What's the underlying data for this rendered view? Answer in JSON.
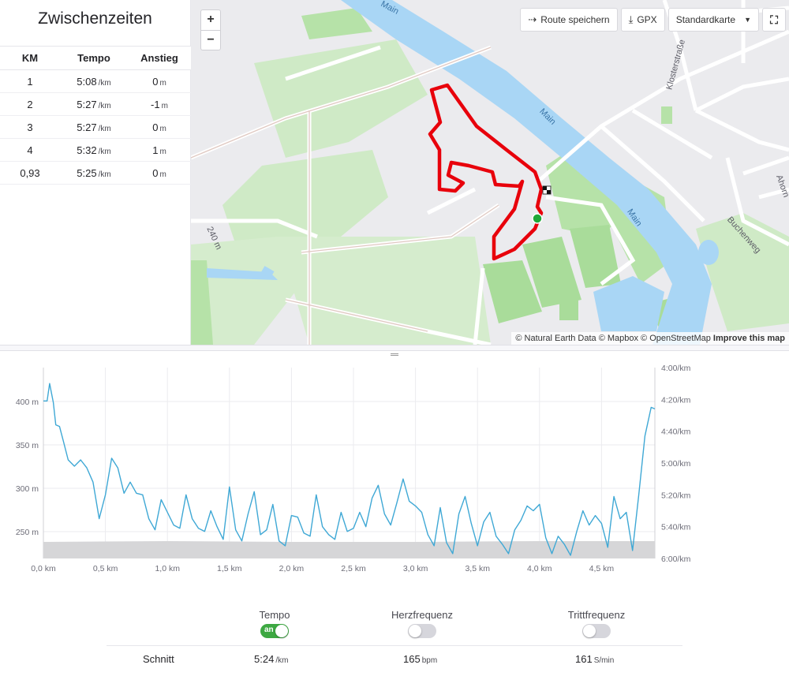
{
  "splits": {
    "title": "Zwischenzeiten",
    "headers": [
      "KM",
      "Tempo",
      "Anstieg"
    ],
    "rows": [
      {
        "km": "1",
        "pace": "5:08",
        "pace_unit": "/km",
        "elev": "0",
        "elev_unit": "m"
      },
      {
        "km": "2",
        "pace": "5:27",
        "pace_unit": "/km",
        "elev": "-1",
        "elev_unit": "m"
      },
      {
        "km": "3",
        "pace": "5:27",
        "pace_unit": "/km",
        "elev": "0",
        "elev_unit": "m"
      },
      {
        "km": "4",
        "pace": "5:32",
        "pace_unit": "/km",
        "elev": "1",
        "elev_unit": "m"
      },
      {
        "km": "0,93",
        "pace": "5:25",
        "pace_unit": "/km",
        "elev": "0",
        "elev_unit": "m"
      }
    ]
  },
  "map": {
    "zoom_in": "+",
    "zoom_out": "−",
    "save_route": "Route speichern",
    "gpx": "GPX",
    "map_type": "Standardkarte",
    "attribution": "© Natural Earth Data © Mapbox © OpenStreetMap",
    "improve": "Improve this map",
    "labels": {
      "river1": "Main",
      "river2": "Main",
      "river3": "Main",
      "street1": "Klosterstraße",
      "street2": "Buchenweg",
      "street3": "Ahorn",
      "elevation": "240 m"
    },
    "colors": {
      "route": "#e8000b",
      "water": "#a9d6f5",
      "green": "#c9ebc0",
      "start": "#1ea838"
    }
  },
  "chart_data": {
    "type": "line",
    "x_unit": "km",
    "xlim": [
      0,
      4.93
    ],
    "x_ticks": [
      "0,0 km",
      "0,5 km",
      "1,0 km",
      "1,5 km",
      "2,0 km",
      "2,5 km",
      "3,0 km",
      "3,5 km",
      "4,0 km",
      "4,5 km"
    ],
    "y_left_ticks": [
      "400 m",
      "350 m",
      "300 m",
      "250 m"
    ],
    "y_right_ticks": [
      "4:00/km",
      "4:20/km",
      "4:40/km",
      "5:00/km",
      "5:20/km",
      "5:40/km",
      "6:00/km"
    ],
    "ylim_right_seconds_per_km": [
      240,
      360
    ],
    "series": [
      {
        "color": "#3fa8d5",
        "x": [
          0,
          0.03,
          0.05,
          0.08,
          0.1,
          0.13,
          0.16,
          0.2,
          0.25,
          0.3,
          0.35,
          0.4,
          0.45,
          0.5,
          0.55,
          0.6,
          0.65,
          0.7,
          0.75,
          0.8,
          0.85,
          0.9,
          0.95,
          1.0,
          1.05,
          1.1,
          1.15,
          1.2,
          1.25,
          1.3,
          1.35,
          1.4,
          1.45,
          1.5,
          1.55,
          1.6,
          1.65,
          1.7,
          1.75,
          1.8,
          1.85,
          1.9,
          1.95,
          2.0,
          2.05,
          2.1,
          2.15,
          2.2,
          2.25,
          2.3,
          2.35,
          2.4,
          2.45,
          2.5,
          2.55,
          2.6,
          2.65,
          2.7,
          2.75,
          2.8,
          2.85,
          2.9,
          2.95,
          3.0,
          3.05,
          3.1,
          3.15,
          3.2,
          3.25,
          3.3,
          3.35,
          3.4,
          3.45,
          3.5,
          3.55,
          3.6,
          3.65,
          3.7,
          3.75,
          3.8,
          3.85,
          3.9,
          3.95,
          4.0,
          4.05,
          4.1,
          4.15,
          4.2,
          4.25,
          4.3,
          4.35,
          4.4,
          4.45,
          4.5,
          4.55,
          4.6,
          4.65,
          4.7,
          4.75,
          4.8,
          4.85,
          4.9,
          4.93
        ],
        "y_pace_s_per_km": [
          261,
          261,
          250,
          262,
          276,
          277,
          286,
          298,
          302,
          298,
          303,
          312,
          335,
          320,
          297,
          303,
          319,
          312,
          319,
          320,
          335,
          342,
          323,
          331,
          339,
          341,
          320,
          335,
          341,
          343,
          330,
          340,
          348,
          315,
          342,
          349,
          332,
          318,
          345,
          342,
          326,
          349,
          352,
          333,
          334,
          344,
          346,
          320,
          340,
          345,
          348,
          331,
          343,
          341,
          331,
          340,
          322,
          314,
          332,
          339,
          325,
          310,
          324,
          327,
          331,
          345,
          352,
          328,
          350,
          357,
          332,
          321,
          338,
          352,
          337,
          331,
          346,
          351,
          357,
          342,
          336,
          327,
          330,
          326,
          347,
          357,
          346,
          351,
          358,
          343,
          330,
          339,
          333,
          338,
          353,
          321,
          335,
          331,
          355,
          320,
          283,
          265,
          266
        ]
      },
      {
        "color": "#d9d9d9",
        "x": [
          0,
          1,
          2,
          3,
          4,
          4.93
        ],
        "y_elevation_m": [
          240,
          241,
          240,
          240,
          241,
          241
        ]
      }
    ]
  },
  "stats": {
    "toggles": [
      {
        "label": "Tempo",
        "state": "an",
        "on": true
      },
      {
        "label": "Herzfrequenz",
        "on": false
      },
      {
        "label": "Trittfrequenz",
        "on": false
      }
    ],
    "avg_label": "Schnitt",
    "avg_pace": "5:24",
    "avg_pace_unit": "/km",
    "avg_hr": "165",
    "avg_hr_unit": "bpm",
    "avg_cad": "161",
    "avg_cad_unit": "S/min"
  }
}
